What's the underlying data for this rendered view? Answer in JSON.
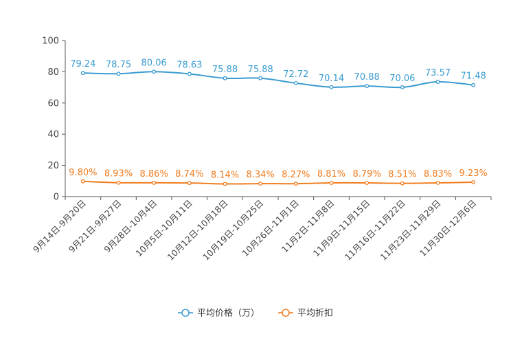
{
  "chart_data": {
    "type": "line",
    "title": "",
    "xlabel": "",
    "ylabel": "",
    "ylim": [
      0,
      100
    ],
    "yticks": [
      0,
      20,
      40,
      60,
      80,
      100
    ],
    "grid": false,
    "legend_position": "bottom-center",
    "categories": [
      "9月14日-9月20日",
      "9月21日-9月27日",
      "9月28日-10月4日",
      "10月5日-10月11日",
      "10月12日-10月18日",
      "10月19日-10月25日",
      "10月26日-11月1日",
      "11月2日-11月8日",
      "11月9日-11月15日",
      "11月16日-11月22日",
      "11月23日-11月29日",
      "11月30日-12月6日"
    ],
    "series": [
      {
        "name": "平均价格（万）",
        "color": "#3a9bd0",
        "values": [
          79.24,
          78.75,
          80.06,
          78.63,
          75.88,
          75.88,
          72.72,
          70.14,
          70.88,
          70.06,
          73.57,
          71.48
        ],
        "labels": [
          "79.24",
          "78.75",
          "80.06",
          "78.63",
          "75.88",
          "75.88",
          "72.72",
          "70.14",
          "70.88",
          "70.06",
          "73.57",
          "71.48"
        ]
      },
      {
        "name": "平均折扣",
        "color": "#f07c1e",
        "values": [
          9.8,
          8.93,
          8.86,
          8.74,
          8.14,
          8.34,
          8.27,
          8.81,
          8.79,
          8.51,
          8.83,
          9.23
        ],
        "labels": [
          "9.80%",
          "8.93%",
          "8.86%",
          "8.74%",
          "8.14%",
          "8.34%",
          "8.27%",
          "8.81%",
          "8.79%",
          "8.51%",
          "8.83%",
          "9.23%"
        ]
      }
    ]
  }
}
